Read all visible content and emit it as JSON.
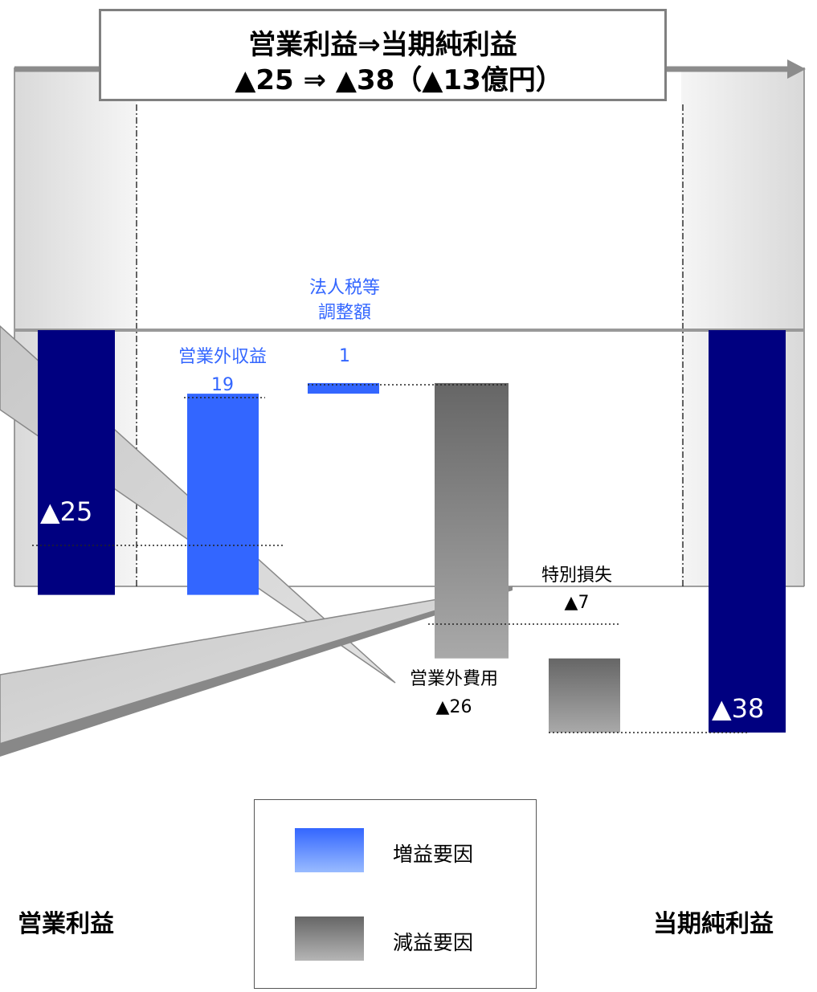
{
  "title": {
    "line1": "営業利益⇒当期純利益",
    "line2": "▲25 ⇒ ▲38（▲13億円）"
  },
  "colors": {
    "endpoint": "#000080",
    "increase": "#3366ff",
    "decrease": "#707070",
    "increase_label": "#3366ff",
    "column_bg": "#e4e4e4"
  },
  "chart_data": {
    "type": "waterfall",
    "unit": "億円",
    "steps": [
      {
        "key": "operating_income",
        "kind": "total",
        "value": -25,
        "start": 0,
        "end": -25,
        "label": "▲25"
      },
      {
        "key": "non_operating_income",
        "kind": "increase",
        "value": 19,
        "start": -25,
        "end": -6,
        "label_lines": [
          "営業外収益",
          "19"
        ]
      },
      {
        "key": "tax_adjustment",
        "kind": "increase",
        "value": 1,
        "start": -6,
        "end": -5,
        "label_lines": [
          "法人税等",
          "調整額",
          "1"
        ]
      },
      {
        "key": "non_operating_expense",
        "kind": "decrease",
        "value": -26,
        "start": -5,
        "end": -31,
        "label_lines": [
          "営業外費用",
          "▲26"
        ]
      },
      {
        "key": "extraordinary_loss",
        "kind": "decrease",
        "value": -7,
        "start": -31,
        "end": -38,
        "label_lines": [
          "特別損失",
          "▲7"
        ]
      },
      {
        "key": "net_income",
        "kind": "total",
        "value": -38,
        "start": 0,
        "end": -38,
        "label": "▲38"
      }
    ],
    "ylim": [
      -38,
      0
    ]
  },
  "legend": [
    {
      "label": "増益要因",
      "kind": "increase"
    },
    {
      "label": "減益要因",
      "kind": "decrease"
    }
  ],
  "bottom_labels": {
    "left": "営業利益",
    "right": "当期純利益"
  }
}
